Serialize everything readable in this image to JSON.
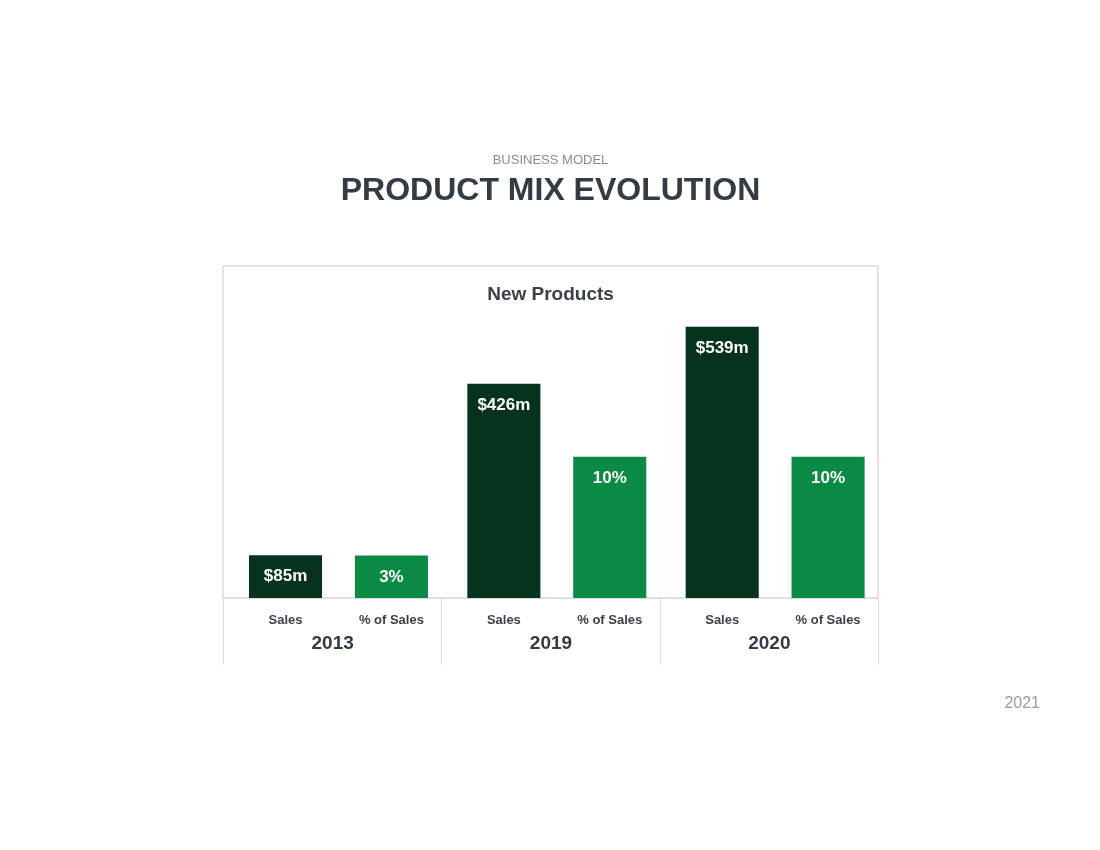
{
  "chart_data": {
    "type": "bar",
    "title": "PRODUCT MIX EVOLUTION",
    "subtitle": "New Products",
    "annotations": [
      "BUSINESS MODEL",
      "2021"
    ],
    "categories": [
      "2013",
      "2019",
      "2020"
    ],
    "series": [
      {
        "name": "Sales",
        "color": "#05331d",
        "values": [
          85,
          426,
          539
        ],
        "value_labels": [
          "$85m",
          "$426m",
          "$539m"
        ]
      },
      {
        "name": "% of Sales",
        "color": "#0a8a45",
        "values": [
          3,
          10,
          10
        ],
        "value_labels": [
          "3%",
          "10%",
          "10%"
        ],
        "axis": "y2"
      }
    ],
    "ylim": [
      0,
      660
    ],
    "y2lim": [
      0,
      23.5
    ],
    "tick_labels": "x",
    "grid": false,
    "legend": false
  }
}
